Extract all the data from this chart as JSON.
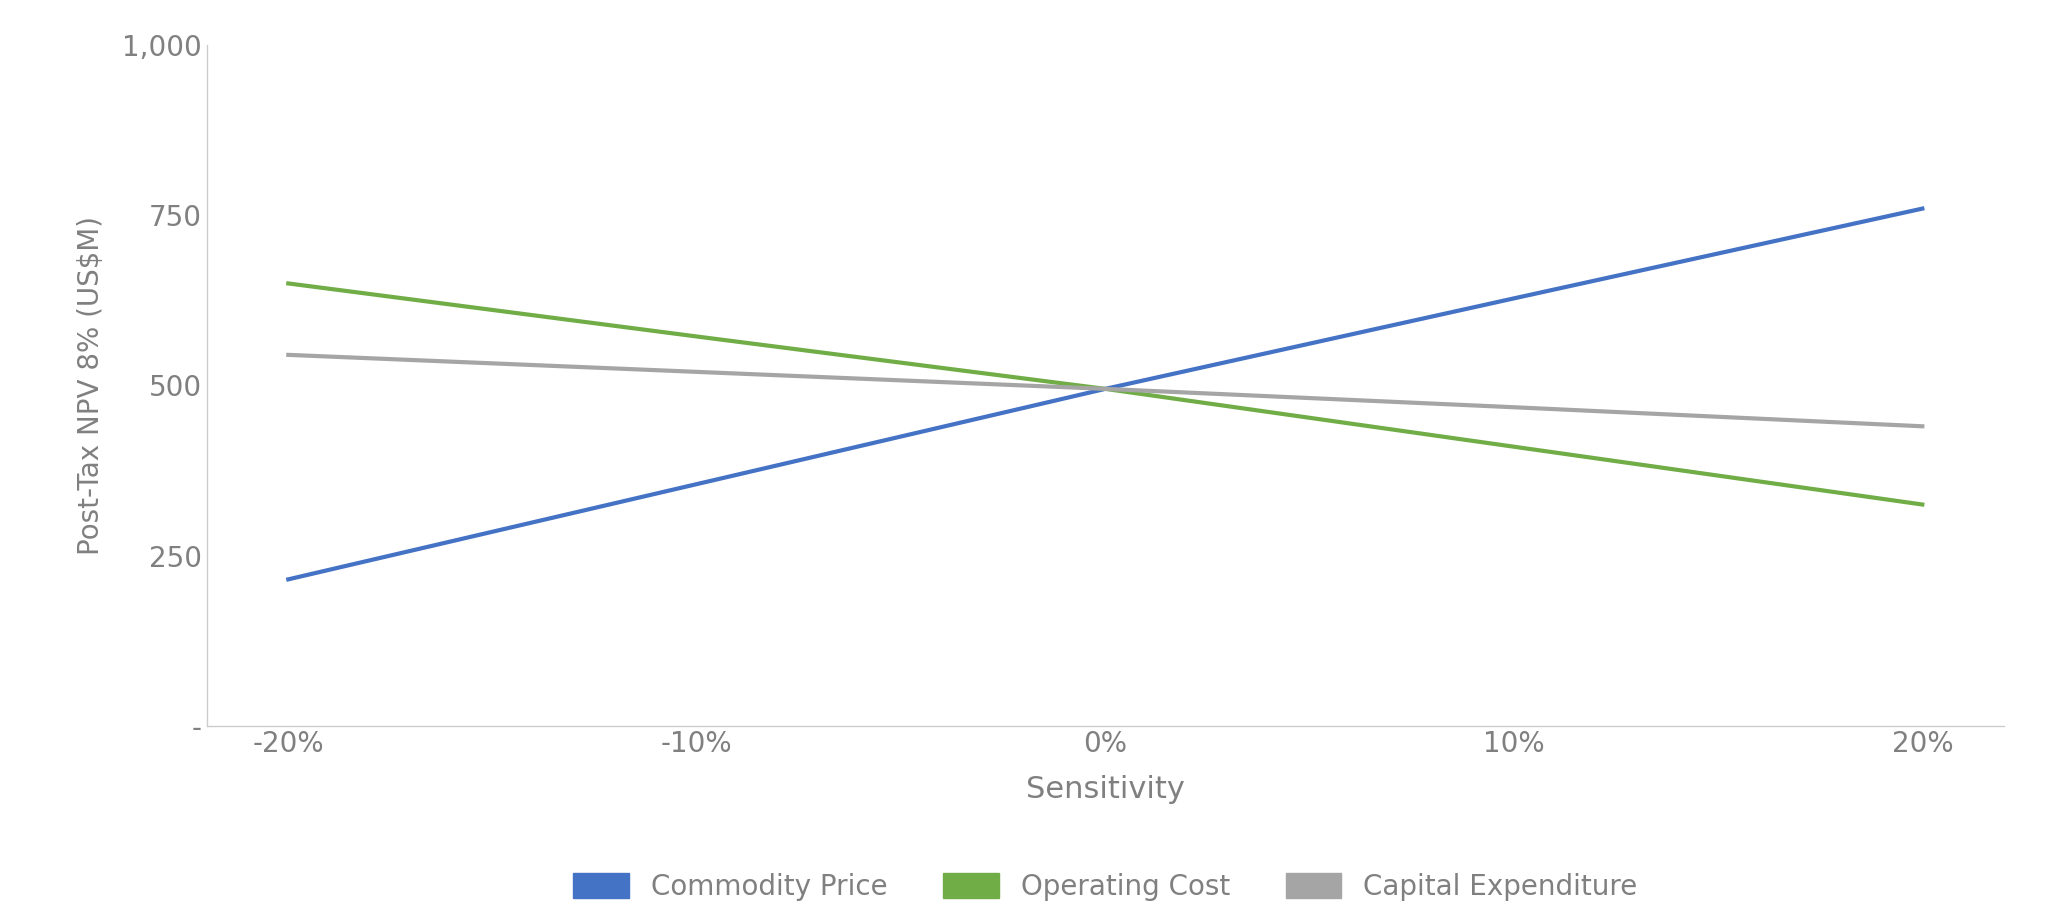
{
  "x_values": [
    -20,
    -10,
    0,
    10,
    20
  ],
  "commodity_price": [
    215,
    355,
    495,
    628,
    760
  ],
  "operating_cost": [
    650,
    572,
    495,
    410,
    325
  ],
  "capital_expenditure": [
    545,
    520,
    495,
    468,
    440
  ],
  "commodity_color": "#4472C4",
  "operating_color": "#70AD47",
  "capex_color": "#A5A5A5",
  "line_width": 3.0,
  "xlabel": "Sensitivity",
  "ylabel": "Post-Tax NPV 8% (US$M)",
  "ylim_min": 0,
  "ylim_max": 1000,
  "xlim_min": -22,
  "xlim_max": 22,
  "ytick_values": [
    0,
    250,
    500,
    750,
    1000
  ],
  "xtick_values": [
    -20,
    -10,
    0,
    10,
    20
  ],
  "background_color": "#FFFFFF",
  "plot_bg_color": "#FFFFFF",
  "legend_labels": [
    "Commodity Price",
    "Operating Cost",
    "Capital Expenditure"
  ],
  "xlabel_fontsize": 22,
  "ylabel_fontsize": 20,
  "tick_fontsize": 20,
  "legend_fontsize": 20,
  "tick_color": "#808080",
  "spine_color": "#CCCCCC",
  "label_color": "#808080"
}
